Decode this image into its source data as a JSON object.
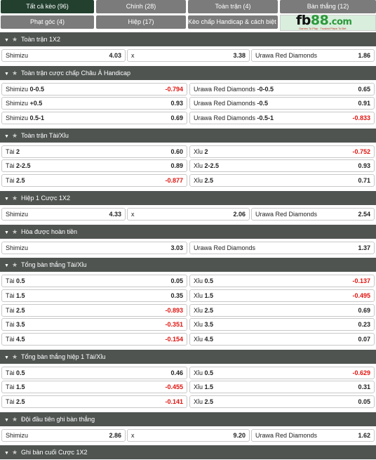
{
  "tabs": [
    {
      "label": "Tất cả kèo (96)",
      "active": true
    },
    {
      "label": "Chính (28)",
      "active": false
    },
    {
      "label": "Toàn trận (4)",
      "active": false
    },
    {
      "label": "Bàn thắng (12)",
      "active": false
    },
    {
      "label": "Phạt góc (4)",
      "active": false
    },
    {
      "label": "Hiệp (17)",
      "active": false
    },
    {
      "label": "Kèo chấp Handicap & cách biệt (3)",
      "active": false
    }
  ],
  "logo": {
    "text_a": "fb",
    "text_b": "88",
    "text_c": ".com",
    "tagline": "Games To Play · Trusted Place To Bet"
  },
  "colors": {
    "header_bg": "#4f5451",
    "active_tab": "#23402f",
    "tab_bg": "#7b7b7b",
    "negative": "#e0140f"
  },
  "sections": [
    {
      "title": "Toàn trận 1X2",
      "layout": "three",
      "rows": [
        [
          {
            "pre": "Shimizu",
            "bold": "",
            "odd": "4.03"
          },
          {
            "pre": "x",
            "bold": "",
            "odd": "3.38"
          },
          {
            "pre": "Urawa Red Diamonds",
            "bold": "",
            "odd": "1.86"
          }
        ]
      ]
    },
    {
      "title": "Toàn trận cược chấp Châu Á Handicap",
      "layout": "two",
      "rows": [
        [
          {
            "pre": "Shimizu ",
            "bold": "0-0.5",
            "odd": "-0.794"
          },
          {
            "pre": "Urawa Red Diamonds ",
            "bold": "-0-0.5",
            "odd": "0.65"
          }
        ],
        [
          {
            "pre": "Shimizu ",
            "bold": "+0.5",
            "odd": "0.93"
          },
          {
            "pre": "Urawa Red Diamonds ",
            "bold": "-0.5",
            "odd": "0.91"
          }
        ],
        [
          {
            "pre": "Shimizu ",
            "bold": "0.5-1",
            "odd": "0.69"
          },
          {
            "pre": "Urawa Red Diamonds ",
            "bold": "-0.5-1",
            "odd": "-0.833"
          }
        ]
      ]
    },
    {
      "title": "Toàn trận Tài/Xỉu",
      "layout": "two",
      "rows": [
        [
          {
            "pre": "Tài ",
            "bold": "2",
            "odd": "0.60"
          },
          {
            "pre": "Xỉu ",
            "bold": "2",
            "odd": "-0.752"
          }
        ],
        [
          {
            "pre": "Tài ",
            "bold": "2-2.5",
            "odd": "0.89"
          },
          {
            "pre": "Xỉu ",
            "bold": "2-2.5",
            "odd": "0.93"
          }
        ],
        [
          {
            "pre": "Tài ",
            "bold": "2.5",
            "odd": "-0.877"
          },
          {
            "pre": "Xỉu ",
            "bold": "2.5",
            "odd": "0.71"
          }
        ]
      ]
    },
    {
      "title": "Hiệp 1 Cược 1X2",
      "layout": "three",
      "rows": [
        [
          {
            "pre": "Shimizu",
            "bold": "",
            "odd": "4.33"
          },
          {
            "pre": "x",
            "bold": "",
            "odd": "2.06"
          },
          {
            "pre": "Urawa Red Diamonds",
            "bold": "",
            "odd": "2.54"
          }
        ]
      ]
    },
    {
      "title": "Hòa được hoàn tiền",
      "layout": "two",
      "rows": [
        [
          {
            "pre": "Shimizu",
            "bold": "",
            "odd": "3.03"
          },
          {
            "pre": "Urawa Red Diamonds",
            "bold": "",
            "odd": "1.37"
          }
        ]
      ]
    },
    {
      "title": "Tổng bàn thắng Tài/Xỉu",
      "layout": "two",
      "rows": [
        [
          {
            "pre": "Tài ",
            "bold": "0.5",
            "odd": "0.05"
          },
          {
            "pre": "Xỉu ",
            "bold": "0.5",
            "odd": "-0.137"
          }
        ],
        [
          {
            "pre": "Tài ",
            "bold": "1.5",
            "odd": "0.35"
          },
          {
            "pre": "Xỉu ",
            "bold": "1.5",
            "odd": "-0.495"
          }
        ],
        [
          {
            "pre": "Tài ",
            "bold": "2.5",
            "odd": "-0.893"
          },
          {
            "pre": "Xỉu ",
            "bold": "2.5",
            "odd": "0.69"
          }
        ],
        [
          {
            "pre": "Tài ",
            "bold": "3.5",
            "odd": "-0.351"
          },
          {
            "pre": "Xỉu ",
            "bold": "3.5",
            "odd": "0.23"
          }
        ],
        [
          {
            "pre": "Tài ",
            "bold": "4.5",
            "odd": "-0.154"
          },
          {
            "pre": "Xỉu ",
            "bold": "4.5",
            "odd": "0.07"
          }
        ]
      ]
    },
    {
      "title": "Tổng bàn thắng hiệp 1 Tài/Xỉu",
      "layout": "two",
      "rows": [
        [
          {
            "pre": "Tài ",
            "bold": "0.5",
            "odd": "0.46"
          },
          {
            "pre": "Xỉu ",
            "bold": "0.5",
            "odd": "-0.629"
          }
        ],
        [
          {
            "pre": "Tài ",
            "bold": "1.5",
            "odd": "-0.455"
          },
          {
            "pre": "Xỉu ",
            "bold": "1.5",
            "odd": "0.31"
          }
        ],
        [
          {
            "pre": "Tài ",
            "bold": "2.5",
            "odd": "-0.141"
          },
          {
            "pre": "Xỉu ",
            "bold": "2.5",
            "odd": "0.05"
          }
        ]
      ]
    },
    {
      "title": "Đội đầu tiên ghi bàn thắng",
      "layout": "three",
      "rows": [
        [
          {
            "pre": "Shimizu",
            "bold": "",
            "odd": "2.86"
          },
          {
            "pre": "x",
            "bold": "",
            "odd": "9.20"
          },
          {
            "pre": "Urawa Red Diamonds",
            "bold": "",
            "odd": "1.62"
          }
        ]
      ]
    },
    {
      "title": "Ghi bàn cuối Cược 1X2",
      "layout": "three",
      "rows": []
    }
  ]
}
